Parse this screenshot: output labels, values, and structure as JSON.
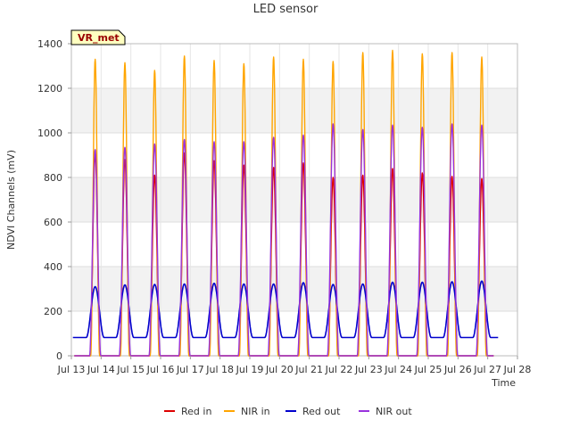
{
  "chart_data": {
    "type": "line",
    "title": "LED sensor",
    "xlabel": "Time",
    "ylabel": "NDVI Channels (mV)",
    "xlim": [
      13,
      28
    ],
    "ylim": [
      0,
      1400
    ],
    "x_ticks": [
      "Jul 13",
      "Jul 14",
      "Jul 15",
      "Jul 16",
      "Jul 17",
      "Jul 18",
      "Jul 19",
      "Jul 20",
      "Jul 21",
      "Jul 22",
      "Jul 23",
      "Jul 24",
      "Jul 25",
      "Jul 26",
      "Jul 27",
      "Jul 28"
    ],
    "y_ticks": [
      0,
      200,
      400,
      600,
      800,
      1000,
      1200,
      1400
    ],
    "grid": true,
    "legend_position": "bottom",
    "annotation": "VR_met",
    "baselines": {
      "Red in": 0,
      "NIR in": 0,
      "Red out": 82,
      "NIR out": 0
    },
    "day_centers": [
      13.8,
      14.8,
      15.8,
      16.8,
      17.8,
      18.8,
      19.8,
      20.8,
      21.8,
      22.8,
      23.8,
      24.8,
      25.8,
      26.8
    ],
    "series": [
      {
        "name": "Red in",
        "color": "#dd0000",
        "daily_peaks": [
          910,
          880,
          810,
          910,
          875,
          855,
          845,
          865,
          800,
          810,
          840,
          820,
          805,
          795
        ]
      },
      {
        "name": "NIR in",
        "color": "#ffa500",
        "daily_peaks": [
          1330,
          1315,
          1280,
          1345,
          1325,
          1310,
          1340,
          1330,
          1320,
          1360,
          1370,
          1355,
          1360,
          1340
        ]
      },
      {
        "name": "Red out",
        "color": "#0000cc",
        "daily_peaks": [
          310,
          318,
          320,
          322,
          325,
          322,
          322,
          328,
          320,
          322,
          330,
          330,
          332,
          335
        ]
      },
      {
        "name": "NIR out",
        "color": "#9933dd",
        "daily_peaks": [
          925,
          935,
          950,
          970,
          960,
          960,
          980,
          990,
          1040,
          1015,
          1035,
          1025,
          1040,
          1035
        ]
      }
    ]
  }
}
